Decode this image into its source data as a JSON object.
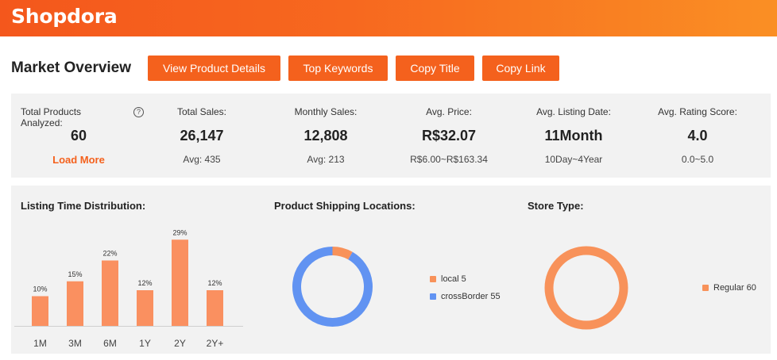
{
  "header": {
    "logo": "Shopdora"
  },
  "page": {
    "title": "Market Overview"
  },
  "buttons": [
    {
      "label": "View Product Details"
    },
    {
      "label": "Top Keywords"
    },
    {
      "label": "Copy Title"
    },
    {
      "label": "Copy Link"
    }
  ],
  "stats": {
    "total_products": {
      "label": "Total Products Analyzed:",
      "value": "60",
      "action": "Load More",
      "help_icon": "?"
    },
    "total_sales": {
      "label": "Total Sales:",
      "value": "26,147",
      "sub": "Avg: 435"
    },
    "monthly_sales": {
      "label": "Monthly Sales:",
      "value": "12,808",
      "sub": "Avg: 213"
    },
    "avg_price": {
      "label": "Avg. Price:",
      "value": "R$32.07",
      "sub": "R$6.00~R$163.34"
    },
    "avg_listing": {
      "label": "Avg. Listing Date:",
      "value": "11Month",
      "sub": "10Day~4Year"
    },
    "avg_rating": {
      "label": "Avg. Rating Score:",
      "value": "4.0",
      "sub": "0.0~5.0"
    }
  },
  "panels": {
    "listing_title": "Listing Time Distribution:",
    "shipping_title": "Product Shipping Locations:",
    "store_title": "Store Type:"
  },
  "chart_data": [
    {
      "type": "bar",
      "title": "Listing Time Distribution:",
      "categories": [
        "1M",
        "3M",
        "6M",
        "1Y",
        "2Y",
        "2Y+"
      ],
      "values": [
        10,
        15,
        22,
        12,
        29,
        12
      ],
      "data_labels": [
        "10%",
        "15%",
        "22%",
        "12%",
        "29%",
        "12%"
      ],
      "ylim": [
        0,
        32
      ],
      "grid": false,
      "color": "#fa9060"
    },
    {
      "type": "pie",
      "title": "Product Shipping Locations:",
      "donut": true,
      "slices": [
        {
          "name": "local",
          "value": 5,
          "legend": "local 5",
          "color": "#f8925a"
        },
        {
          "name": "crossBorder",
          "value": 55,
          "legend": "crossBorder 55",
          "color": "#6193f2"
        }
      ],
      "legend_position": "right"
    },
    {
      "type": "pie",
      "title": "Store Type:",
      "donut": true,
      "slices": [
        {
          "name": "Regular",
          "value": 60,
          "legend": "Regular 60",
          "color": "#f8925a"
        }
      ],
      "legend_position": "right"
    }
  ]
}
